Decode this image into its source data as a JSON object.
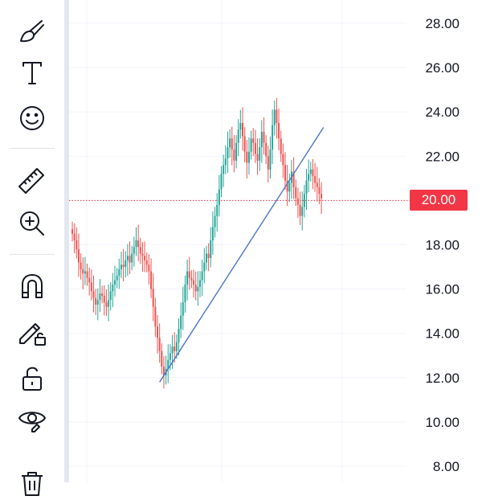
{
  "toolbar": {
    "tools": [
      {
        "name": "brush-icon"
      },
      {
        "name": "text-icon"
      },
      {
        "name": "emoji-icon"
      },
      {
        "name": "ruler-icon"
      },
      {
        "name": "zoom-in-icon"
      },
      {
        "name": "magnet-icon"
      },
      {
        "name": "lock-drawings-icon"
      },
      {
        "name": "lock-icon"
      },
      {
        "name": "eye-icon"
      },
      {
        "name": "trash-icon"
      }
    ]
  },
  "chart": {
    "price_axis": {
      "labels": [
        "28.00",
        "26.00",
        "24.00",
        "22.00",
        "20.00",
        "18.00",
        "16.00",
        "14.00",
        "12.00",
        "10.00",
        "8.00"
      ]
    },
    "current_price": {
      "label": "20.00",
      "value": 20.0,
      "color": "#f23645"
    },
    "colors": {
      "up": "#26a69a",
      "down": "#ef5350",
      "trendline": "#4a76c9",
      "grid": "#f0f3fa",
      "axis_text": "#131722"
    },
    "trendline": {
      "start": {
        "bar": 41,
        "price": 11.8
      },
      "end": {
        "bar": 118,
        "price": 23.3
      }
    },
    "chart_data": {
      "type": "candlestick",
      "ylim": [
        7.5,
        29
      ],
      "close": [
        18.5,
        18.2,
        17.8,
        17.2,
        16.9,
        16.7,
        16.8,
        16.5,
        16.3,
        15.9,
        15.6,
        15.3,
        15.5,
        15.8,
        15.7,
        15.4,
        15.2,
        15.5,
        15.9,
        16.2,
        16.4,
        16.6,
        16.9,
        17.1,
        17.0,
        17.3,
        17.5,
        17.2,
        17.6,
        17.9,
        18.2,
        17.9,
        17.6,
        17.5,
        17.3,
        17.1,
        16.8,
        16.0,
        15.2,
        14.3,
        13.8,
        13.2,
        12.5,
        12.1,
        12.4,
        12.8,
        13.1,
        13.4,
        13.2,
        13.6,
        14.2,
        14.8,
        15.4,
        16.2,
        16.8,
        16.5,
        16.4,
        16.2,
        15.9,
        16.1,
        16.4,
        16.8,
        17.2,
        17.6,
        17.4,
        18.2,
        18.8,
        19.3,
        19.8,
        20.5,
        21.2,
        21.6,
        21.9,
        22.4,
        22.8,
        22.3,
        21.8,
        22.6,
        23.2,
        23.5,
        22.9,
        22.2,
        21.7,
        22.2,
        22.8,
        22.6,
        22.1,
        21.8,
        22.4,
        23.1,
        22.6,
        22.0,
        21.4,
        22.3,
        23.4,
        24.1,
        23.5,
        22.8,
        22.1,
        21.6,
        20.9,
        20.4,
        20.8,
        21.3,
        20.6,
        20.1,
        19.8,
        19.3,
        19.7,
        20.3,
        20.9,
        21.2,
        21.4,
        21.1,
        20.8,
        20.6,
        20.3,
        20.1
      ]
    }
  }
}
